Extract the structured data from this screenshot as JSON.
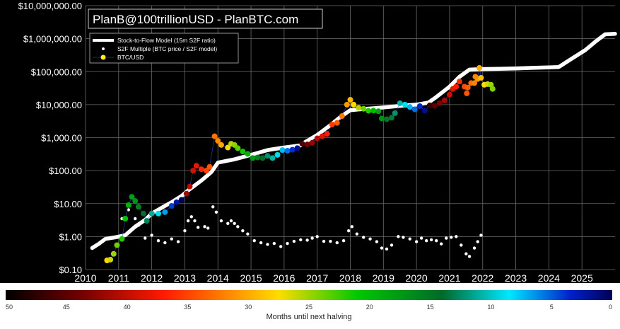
{
  "chart_data": {
    "type": "scatter",
    "title": "PlanB@100trillionUSD - PlanBTC.com",
    "xlabel": "",
    "ylabel": "",
    "y_scale": "log",
    "xlim": [
      2010,
      2026
    ],
    "ylim": [
      0.1,
      10000000
    ],
    "grid": true,
    "legend_placement": "top-left",
    "background": "#000000",
    "x_ticks": [
      "2010",
      "2011",
      "2012",
      "2013",
      "2014",
      "2015",
      "2016",
      "2017",
      "2018",
      "2019",
      "2020",
      "2021",
      "2022",
      "2023",
      "2024",
      "2025"
    ],
    "y_ticks": [
      {
        "value": 0.1,
        "label": "$0.10"
      },
      {
        "value": 1,
        "label": "$1.00"
      },
      {
        "value": 10,
        "label": "$10.00"
      },
      {
        "value": 100,
        "label": "$100.00"
      },
      {
        "value": 1000,
        "label": "$1,000.00"
      },
      {
        "value": 10000,
        "label": "$10,000.00"
      },
      {
        "value": 100000,
        "label": "$100,000.00"
      },
      {
        "value": 1000000,
        "label": "$1,000,000.00"
      },
      {
        "value": 10000000,
        "label": "$10,000,000.00"
      }
    ],
    "legend": [
      "Stock-to-Flow Model (15m S2F ratio)",
      "S2F Multiple (BTC price / S2F model)",
      "BTC/USD"
    ],
    "colorbar": {
      "label": "Months until next halving",
      "range": [
        50,
        0
      ],
      "ticks": [
        "50",
        "45",
        "40",
        "35",
        "30",
        "25",
        "20",
        "15",
        "10",
        "5",
        "0"
      ]
    },
    "halvings": [
      2012.91,
      2016.52,
      2020.36,
      2024.3
    ],
    "s2f_model": [
      [
        2010.2,
        0.45
      ],
      [
        2010.4,
        0.6
      ],
      [
        2010.6,
        0.85
      ],
      [
        2010.9,
        0.95
      ],
      [
        2011.2,
        1.1
      ],
      [
        2011.5,
        2.0
      ],
      [
        2011.8,
        3.2
      ],
      [
        2012.0,
        5.0
      ],
      [
        2012.3,
        7.5
      ],
      [
        2012.6,
        11
      ],
      [
        2012.9,
        17
      ],
      [
        2013.1,
        25
      ],
      [
        2013.5,
        50
      ],
      [
        2013.8,
        90
      ],
      [
        2014.0,
        175
      ],
      [
        2014.5,
        220
      ],
      [
        2015.0,
        300
      ],
      [
        2015.5,
        420
      ],
      [
        2016.0,
        500
      ],
      [
        2016.5,
        580
      ],
      [
        2016.6,
        700
      ],
      [
        2017.0,
        1200
      ],
      [
        2017.4,
        2400
      ],
      [
        2017.7,
        4200
      ],
      [
        2018.0,
        6800
      ],
      [
        2018.5,
        7500
      ],
      [
        2019.0,
        8200
      ],
      [
        2019.5,
        9200
      ],
      [
        2020.0,
        10000
      ],
      [
        2020.36,
        11500
      ],
      [
        2020.6,
        17000
      ],
      [
        2021.0,
        35000
      ],
      [
        2021.3,
        70000
      ],
      [
        2021.6,
        115000
      ],
      [
        2022.0,
        120000
      ],
      [
        2022.5,
        122000
      ],
      [
        2023.0,
        125000
      ],
      [
        2023.5,
        130000
      ],
      [
        2024.0,
        135000
      ],
      [
        2024.3,
        138000
      ],
      [
        2024.7,
        250000
      ],
      [
        2025.1,
        450000
      ],
      [
        2025.4,
        800000
      ],
      [
        2025.7,
        1350000
      ],
      [
        2026.0,
        1400000
      ]
    ],
    "s2f_multiple": [
      [
        2011.1,
        3.5
      ],
      [
        2011.3,
        6.5
      ],
      [
        2011.5,
        3.5
      ],
      [
        2011.6,
        2.2
      ],
      [
        2011.8,
        0.9
      ],
      [
        2012.0,
        1.1
      ],
      [
        2012.2,
        0.75
      ],
      [
        2012.4,
        0.65
      ],
      [
        2012.6,
        0.85
      ],
      [
        2012.8,
        0.7
      ],
      [
        2013.0,
        1.5
      ],
      [
        2013.1,
        3.0
      ],
      [
        2013.2,
        4.0
      ],
      [
        2013.3,
        3.0
      ],
      [
        2013.4,
        1.9
      ],
      [
        2013.6,
        2.0
      ],
      [
        2013.7,
        1.8
      ],
      [
        2013.85,
        8.0
      ],
      [
        2013.95,
        5.5
      ],
      [
        2014.1,
        3.0
      ],
      [
        2014.3,
        2.5
      ],
      [
        2014.4,
        3.0
      ],
      [
        2014.5,
        2.5
      ],
      [
        2014.6,
        2.0
      ],
      [
        2014.75,
        1.5
      ],
      [
        2014.9,
        1.2
      ],
      [
        2015.1,
        0.75
      ],
      [
        2015.3,
        0.65
      ],
      [
        2015.5,
        0.58
      ],
      [
        2015.7,
        0.62
      ],
      [
        2015.9,
        0.5
      ],
      [
        2016.1,
        0.62
      ],
      [
        2016.3,
        0.72
      ],
      [
        2016.5,
        0.8
      ],
      [
        2016.7,
        0.78
      ],
      [
        2016.85,
        0.9
      ],
      [
        2017.0,
        1.0
      ],
      [
        2017.2,
        0.72
      ],
      [
        2017.4,
        0.72
      ],
      [
        2017.6,
        0.65
      ],
      [
        2017.8,
        0.75
      ],
      [
        2017.95,
        1.5
      ],
      [
        2018.05,
        2.0
      ],
      [
        2018.2,
        1.2
      ],
      [
        2018.4,
        0.95
      ],
      [
        2018.6,
        0.85
      ],
      [
        2018.8,
        0.7
      ],
      [
        2018.95,
        0.45
      ],
      [
        2019.1,
        0.42
      ],
      [
        2019.25,
        0.55
      ],
      [
        2019.45,
        1.0
      ],
      [
        2019.6,
        0.95
      ],
      [
        2019.8,
        0.85
      ],
      [
        2020.0,
        0.7
      ],
      [
        2020.15,
        0.9
      ],
      [
        2020.3,
        0.75
      ],
      [
        2020.45,
        0.8
      ],
      [
        2020.6,
        0.75
      ],
      [
        2020.75,
        0.6
      ],
      [
        2020.9,
        0.9
      ],
      [
        2021.05,
        0.95
      ],
      [
        2021.2,
        1.0
      ],
      [
        2021.35,
        0.55
      ],
      [
        2021.5,
        0.3
      ],
      [
        2021.6,
        0.25
      ],
      [
        2021.75,
        0.45
      ],
      [
        2021.85,
        0.7
      ],
      [
        2021.95,
        1.1
      ]
    ],
    "btc_usd": [
      [
        2010.65,
        0.19
      ],
      [
        2010.75,
        0.2
      ],
      [
        2010.85,
        0.3
      ],
      [
        2010.95,
        0.55
      ],
      [
        2011.1,
        0.85
      ],
      [
        2011.2,
        3.5
      ],
      [
        2011.3,
        9.0
      ],
      [
        2011.4,
        16
      ],
      [
        2011.5,
        12
      ],
      [
        2011.6,
        8
      ],
      [
        2011.75,
        5.0
      ],
      [
        2011.85,
        3.0
      ],
      [
        2012.0,
        5.0
      ],
      [
        2012.2,
        5.0
      ],
      [
        2012.4,
        5.5
      ],
      [
        2012.6,
        8.5
      ],
      [
        2012.75,
        11
      ],
      [
        2012.9,
        13
      ],
      [
        2013.05,
        20
      ],
      [
        2013.15,
        33
      ],
      [
        2013.25,
        100
      ],
      [
        2013.35,
        140
      ],
      [
        2013.5,
        110
      ],
      [
        2013.65,
        100
      ],
      [
        2013.75,
        130
      ],
      [
        2013.9,
        1100
      ],
      [
        2014.0,
        800
      ],
      [
        2014.1,
        600
      ],
      [
        2014.3,
        500
      ],
      [
        2014.4,
        650
      ],
      [
        2014.5,
        600
      ],
      [
        2014.6,
        480
      ],
      [
        2014.75,
        380
      ],
      [
        2014.9,
        320
      ],
      [
        2015.05,
        240
      ],
      [
        2015.2,
        250
      ],
      [
        2015.35,
        240
      ],
      [
        2015.5,
        280
      ],
      [
        2015.65,
        240
      ],
      [
        2015.8,
        300
      ],
      [
        2015.95,
        420
      ],
      [
        2016.1,
        400
      ],
      [
        2016.25,
        430
      ],
      [
        2016.4,
        480
      ],
      [
        2016.55,
        650
      ],
      [
        2016.7,
        620
      ],
      [
        2016.85,
        700
      ],
      [
        2017.0,
        950
      ],
      [
        2017.15,
        1100
      ],
      [
        2017.3,
        1300
      ],
      [
        2017.45,
        2500
      ],
      [
        2017.6,
        2800
      ],
      [
        2017.75,
        4500
      ],
      [
        2017.9,
        10000
      ],
      [
        2018.0,
        14000
      ],
      [
        2018.1,
        10000
      ],
      [
        2018.25,
        8000
      ],
      [
        2018.4,
        7500
      ],
      [
        2018.55,
        6500
      ],
      [
        2018.7,
        6600
      ],
      [
        2018.85,
        6300
      ],
      [
        2018.95,
        3800
      ],
      [
        2019.1,
        3600
      ],
      [
        2019.25,
        4000
      ],
      [
        2019.35,
        5500
      ],
      [
        2019.5,
        11000
      ],
      [
        2019.65,
        10000
      ],
      [
        2019.8,
        8500
      ],
      [
        2019.95,
        7200
      ],
      [
        2020.1,
        9000
      ],
      [
        2020.25,
        6500
      ],
      [
        2020.4,
        9500
      ],
      [
        2020.55,
        9200
      ],
      [
        2020.7,
        11000
      ],
      [
        2020.85,
        13500
      ],
      [
        2021.0,
        20000
      ],
      [
        2021.1,
        30000
      ],
      [
        2021.2,
        35000
      ],
      [
        2021.3,
        50000
      ],
      [
        2021.45,
        35000
      ],
      [
        2021.55,
        33000
      ],
      [
        2021.65,
        45000
      ],
      [
        2021.75,
        45000
      ],
      [
        2021.85,
        60000
      ],
      [
        2021.95,
        65000
      ],
      [
        2022.05,
        40000
      ],
      [
        2022.15,
        42000
      ],
      [
        2022.25,
        40000
      ],
      [
        2022.3,
        30000
      ],
      [
        2021.52,
        22000
      ],
      [
        2021.78,
        70000
      ],
      [
        2021.9,
        130000
      ]
    ]
  }
}
